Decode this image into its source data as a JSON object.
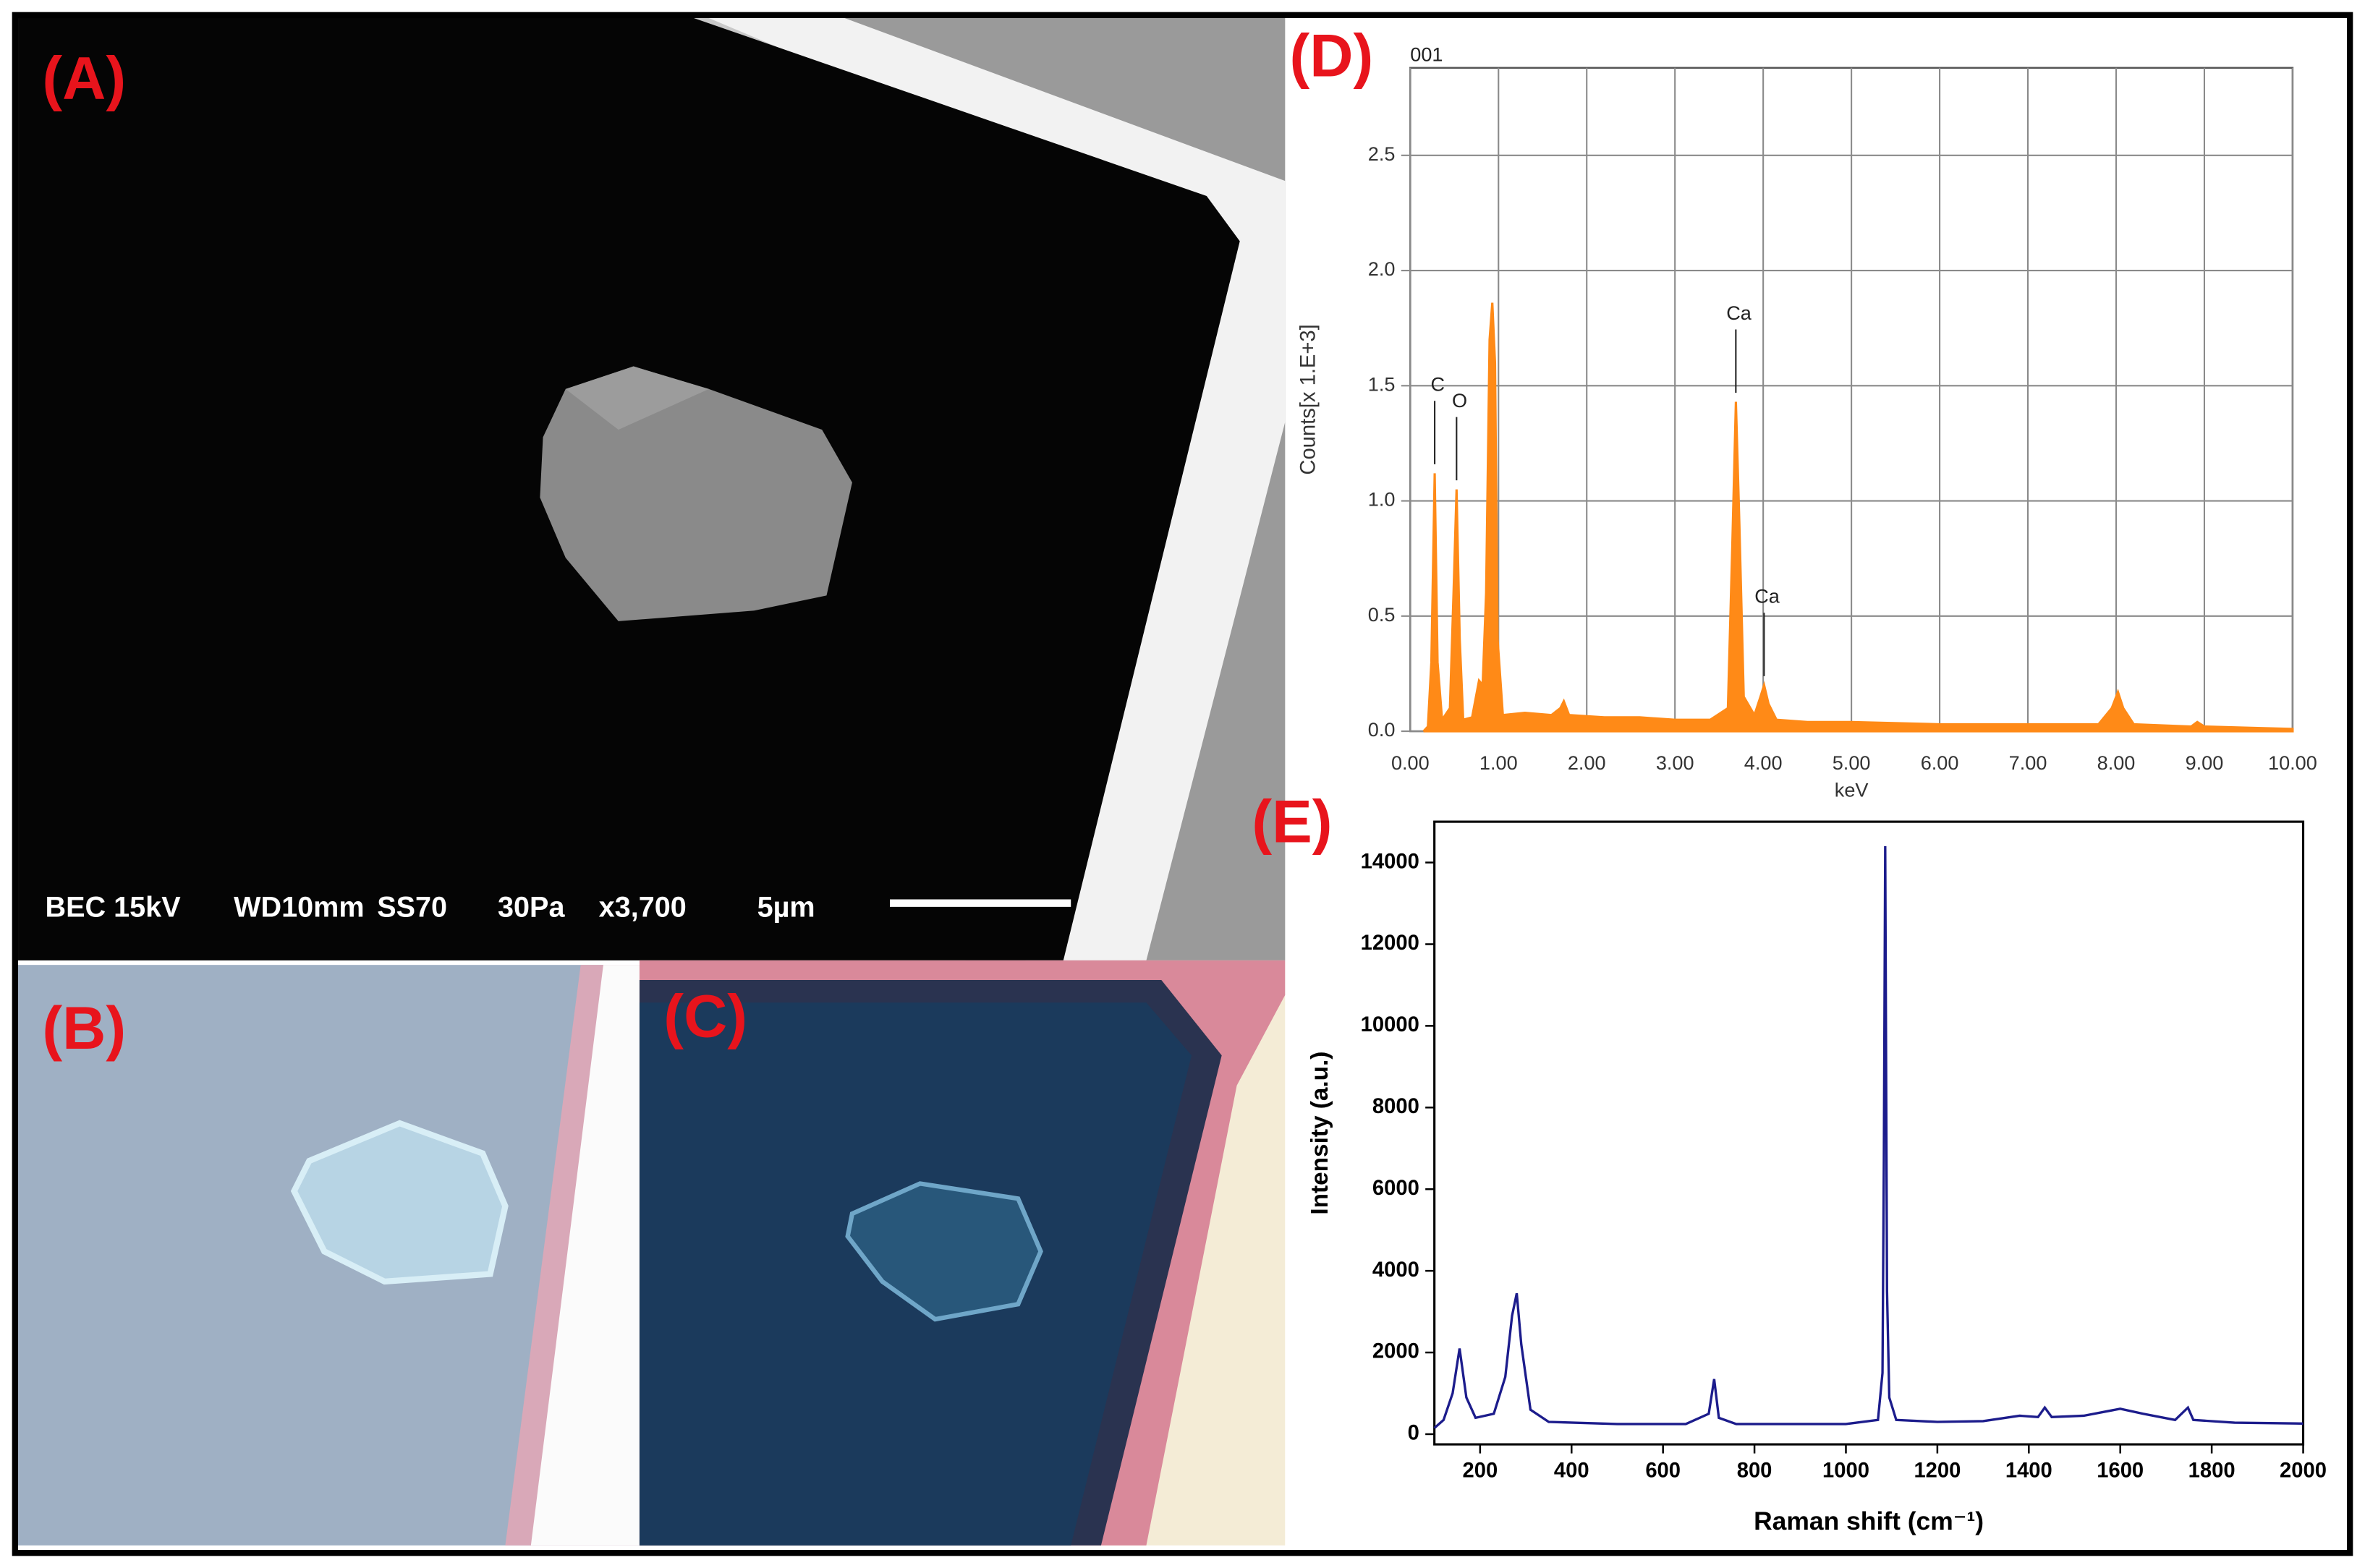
{
  "panels": [
    {
      "label": "(A)",
      "info": [
        "BEC 15kV",
        "WD10mm",
        "SS70",
        "30Pa",
        "x3,700",
        "5µm"
      ]
    },
    {
      "label": "(B)"
    },
    {
      "label": "(C)"
    }
  ],
  "chart_data": [
    {
      "type": "area",
      "panel_label": "(D)",
      "title": "001",
      "x_label": "keV",
      "y_label": "Counts[x 1.E+3]",
      "color": "#ff8a17",
      "grid": true,
      "xlim": [
        0,
        10
      ],
      "ylim": [
        0,
        2.88
      ],
      "xticks": [
        {
          "value": 0,
          "label": "0.00"
        },
        {
          "value": 1,
          "label": "1.00"
        },
        {
          "value": 2,
          "label": "2.00"
        },
        {
          "value": 3,
          "label": "3.00"
        },
        {
          "value": 4,
          "label": "4.00"
        },
        {
          "value": 5,
          "label": "5.00"
        },
        {
          "value": 6,
          "label": "6.00"
        },
        {
          "value": 7,
          "label": "7.00"
        },
        {
          "value": 8,
          "label": "8.00"
        },
        {
          "value": 9,
          "label": "9.00"
        },
        {
          "value": 10,
          "label": "10.00"
        }
      ],
      "yticks": [
        {
          "value": 0,
          "label": "0.0"
        },
        {
          "value": 0.5,
          "label": "0.5"
        },
        {
          "value": 1,
          "label": "1.0"
        },
        {
          "value": 1.5,
          "label": "1.5"
        },
        {
          "value": 2,
          "label": "2.0"
        },
        {
          "value": 2.5,
          "label": "2.5"
        }
      ],
      "x": [
        0.15,
        0.2,
        0.24,
        0.277,
        0.31,
        0.36,
        0.45,
        0.49,
        0.525,
        0.56,
        0.6,
        0.7,
        0.78,
        0.82,
        0.86,
        0.9,
        0.93,
        0.96,
        0.99,
        1.05,
        1.3,
        1.6,
        1.7,
        1.74,
        1.8,
        2.2,
        2.6,
        3.0,
        3.4,
        3.6,
        3.65,
        3.69,
        3.73,
        3.78,
        3.9,
        3.97,
        4.01,
        4.06,
        4.15,
        4.5,
        5.0,
        6.0,
        7.0,
        7.8,
        7.95,
        8.02,
        8.08,
        8.2,
        8.85,
        8.92,
        9.0,
        10.0
      ],
      "values": [
        0.0,
        0.02,
        0.3,
        1.12,
        0.3,
        0.05,
        0.1,
        0.6,
        1.05,
        0.4,
        0.05,
        0.06,
        0.22,
        0.2,
        0.6,
        1.7,
        1.86,
        1.6,
        0.4,
        0.07,
        0.08,
        0.07,
        0.1,
        0.13,
        0.07,
        0.06,
        0.06,
        0.05,
        0.05,
        0.1,
        0.8,
        1.43,
        0.9,
        0.15,
        0.07,
        0.15,
        0.2,
        0.12,
        0.05,
        0.04,
        0.04,
        0.03,
        0.03,
        0.03,
        0.1,
        0.17,
        0.1,
        0.03,
        0.02,
        0.04,
        0.02,
        0.01
      ],
      "annotations": [
        {
          "text": "C",
          "x": 0.277
        },
        {
          "text": "O",
          "x": 0.525
        },
        {
          "text": "Ca",
          "x": 3.69
        },
        {
          "text": "Ca",
          "x": 4.01
        }
      ]
    },
    {
      "type": "line",
      "panel_label": "(E)",
      "x_label": "Raman shift (cm⁻¹)",
      "y_label": "Intensity (a.u.)",
      "color": "#1c1c8c",
      "grid": false,
      "xlim": [
        100,
        2000
      ],
      "ylim": [
        -250,
        15000
      ],
      "xticks": [
        200,
        400,
        600,
        800,
        1000,
        1200,
        1400,
        1600,
        1800,
        2000
      ],
      "yticks": [
        0,
        2000,
        4000,
        6000,
        8000,
        10000,
        12000,
        14000
      ],
      "x": [
        100,
        120,
        140,
        155,
        170,
        190,
        230,
        255,
        270,
        280,
        290,
        310,
        350,
        500,
        650,
        700,
        712,
        722,
        760,
        1000,
        1070,
        1080,
        1083,
        1086,
        1090,
        1095,
        1110,
        1200,
        1300,
        1380,
        1420,
        1435,
        1450,
        1520,
        1600,
        1650,
        1720,
        1748,
        1760,
        1850,
        2000
      ],
      "values": [
        150,
        350,
        1000,
        2100,
        900,
        400,
        500,
        1400,
        2900,
        3450,
        2200,
        600,
        300,
        250,
        250,
        500,
        1350,
        400,
        250,
        250,
        350,
        1500,
        6700,
        14400,
        3500,
        900,
        350,
        300,
        320,
        450,
        420,
        650,
        420,
        450,
        620,
        500,
        350,
        650,
        350,
        280,
        260
      ]
    }
  ]
}
